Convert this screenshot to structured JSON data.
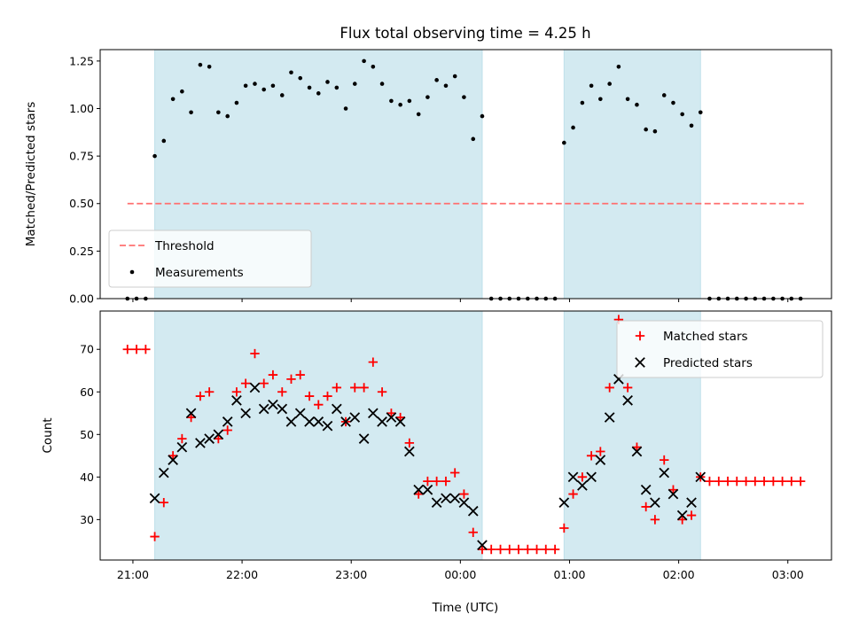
{
  "chart_data": {
    "type": "scatter",
    "title": "Flux total observing time = 4.25 h",
    "xlabel": "Time (UTC)",
    "x_units": "hours since 21:00 UTC (date axis)",
    "x_ticks": [
      {
        "value": 0,
        "label": "21:00"
      },
      {
        "value": 1,
        "label": "22:00"
      },
      {
        "value": 2,
        "label": "23:00"
      },
      {
        "value": 3,
        "label": "00:00"
      },
      {
        "value": 4,
        "label": "01:00"
      },
      {
        "value": 5,
        "label": "02:00"
      },
      {
        "value": 6,
        "label": "03:00"
      }
    ],
    "xlim": [
      -0.3,
      6.4
    ],
    "shaded_intervals": [
      [
        0.2,
        3.2
      ],
      [
        3.95,
        5.2
      ]
    ],
    "shade_color": "#d3eaf1",
    "panels": [
      {
        "id": "ratio",
        "ylabel": "Matched/Predicted stars",
        "ylim": [
          0,
          1.31
        ],
        "y_ticks": [
          "0.00",
          "0.25",
          "0.50",
          "0.75",
          "1.00",
          "1.25"
        ],
        "threshold": {
          "name": "Threshold",
          "value": 0.5,
          "x_range": [
            -0.05,
            6.15
          ],
          "color": "#ff7070"
        },
        "legend": [
          "Threshold",
          "Measurements"
        ],
        "legend_position": "lower-left",
        "series": [
          {
            "name": "Measurements",
            "color": "#000000",
            "marker": "dot",
            "x": [
              -0.05,
              0.033,
              0.117,
              0.2,
              0.283,
              0.367,
              0.45,
              0.533,
              0.617,
              0.7,
              0.783,
              0.867,
              0.95,
              1.033,
              1.117,
              1.2,
              1.283,
              1.367,
              1.45,
              1.533,
              1.617,
              1.7,
              1.783,
              1.867,
              1.95,
              2.033,
              2.117,
              2.2,
              2.283,
              2.367,
              2.45,
              2.533,
              2.617,
              2.7,
              2.783,
              2.867,
              2.95,
              3.033,
              3.117,
              3.2,
              3.283,
              3.367,
              3.45,
              3.533,
              3.617,
              3.7,
              3.783,
              3.867,
              3.95,
              4.033,
              4.117,
              4.2,
              4.283,
              4.367,
              4.45,
              4.533,
              4.617,
              4.7,
              4.783,
              4.867,
              4.95,
              5.033,
              5.117,
              5.2,
              5.283,
              5.367,
              5.45,
              5.533,
              5.617,
              5.7,
              5.783,
              5.867,
              5.95,
              6.033,
              6.117
            ],
            "y": [
              0,
              0,
              0,
              0.75,
              0.83,
              1.05,
              1.09,
              0.98,
              1.23,
              1.22,
              0.98,
              0.96,
              1.03,
              1.12,
              1.13,
              1.1,
              1.12,
              1.07,
              1.19,
              1.16,
              1.11,
              1.08,
              1.14,
              1.11,
              1.0,
              1.13,
              1.25,
              1.22,
              1.13,
              1.04,
              1.02,
              1.04,
              0.97,
              1.06,
              1.15,
              1.12,
              1.17,
              1.06,
              0.84,
              0.96,
              0,
              0,
              0,
              0,
              0,
              0,
              0,
              0,
              0.82,
              0.9,
              1.03,
              1.12,
              1.05,
              1.13,
              1.22,
              1.05,
              1.02,
              0.89,
              0.88,
              1.07,
              1.03,
              0.97,
              0.91,
              0.98,
              0,
              0,
              0,
              0,
              0,
              0,
              0,
              0,
              0,
              0,
              0
            ]
          }
        ]
      },
      {
        "id": "count",
        "ylabel": "Count",
        "ylim": [
          20.5,
          79
        ],
        "y_ticks": [
          "30",
          "40",
          "50",
          "60",
          "70"
        ],
        "legend": [
          "Matched stars",
          "Predicted stars"
        ],
        "legend_position": "upper-right",
        "series": [
          {
            "name": "Matched stars",
            "color": "#ff0000",
            "marker": "plus",
            "x": [
              -0.05,
              0.033,
              0.117,
              0.2,
              0.283,
              0.367,
              0.45,
              0.533,
              0.617,
              0.7,
              0.783,
              0.867,
              0.95,
              1.033,
              1.117,
              1.2,
              1.283,
              1.367,
              1.45,
              1.533,
              1.617,
              1.7,
              1.783,
              1.867,
              1.95,
              2.033,
              2.117,
              2.2,
              2.283,
              2.367,
              2.45,
              2.533,
              2.617,
              2.7,
              2.783,
              2.867,
              2.95,
              3.033,
              3.117,
              3.2,
              3.283,
              3.367,
              3.45,
              3.533,
              3.617,
              3.7,
              3.783,
              3.867,
              3.95,
              4.033,
              4.117,
              4.2,
              4.283,
              4.367,
              4.45,
              4.533,
              4.617,
              4.7,
              4.783,
              4.867,
              4.95,
              5.033,
              5.117,
              5.2,
              5.283,
              5.367,
              5.45,
              5.533,
              5.617,
              5.7,
              5.783,
              5.867,
              5.95,
              6.033,
              6.117
            ],
            "y": [
              70,
              70,
              70,
              26,
              34,
              45,
              49,
              54,
              59,
              60,
              49,
              51,
              60,
              62,
              69,
              62,
              64,
              60,
              63,
              64,
              59,
              57,
              59,
              61,
              53,
              61,
              61,
              67,
              60,
              55,
              54,
              48,
              36,
              39,
              39,
              39,
              41,
              36,
              27,
              23,
              23,
              23,
              23,
              23,
              23,
              23,
              23,
              23,
              28,
              36,
              40,
              45,
              46,
              61,
              77,
              61,
              47,
              33,
              30,
              44,
              37,
              30,
              31,
              40,
              39,
              39,
              39,
              39,
              39,
              39,
              39,
              39,
              39,
              39,
              39
            ]
          },
          {
            "name": "Predicted stars",
            "color": "#000000",
            "marker": "x",
            "x": [
              0.2,
              0.283,
              0.367,
              0.45,
              0.533,
              0.617,
              0.7,
              0.783,
              0.867,
              0.95,
              1.033,
              1.117,
              1.2,
              1.283,
              1.367,
              1.45,
              1.533,
              1.617,
              1.7,
              1.783,
              1.867,
              1.95,
              2.033,
              2.117,
              2.2,
              2.283,
              2.367,
              2.45,
              2.533,
              2.617,
              2.7,
              2.783,
              2.867,
              2.95,
              3.033,
              3.117,
              3.2,
              3.95,
              4.033,
              4.117,
              4.2,
              4.283,
              4.367,
              4.45,
              4.533,
              4.617,
              4.7,
              4.783,
              4.867,
              4.95,
              5.033,
              5.117,
              5.2
            ],
            "y": [
              35,
              41,
              44,
              47,
              55,
              48,
              49,
              50,
              53,
              58,
              55,
              61,
              56,
              57,
              56,
              53,
              55,
              53,
              53,
              52,
              56,
              53,
              54,
              49,
              55,
              53,
              54,
              53,
              46,
              37,
              37,
              34,
              35,
              35,
              34,
              32,
              24,
              34,
              40,
              38,
              40,
              44,
              54,
              63,
              58,
              46,
              37,
              34,
              41,
              36,
              31,
              34,
              40
            ]
          }
        ]
      }
    ]
  }
}
